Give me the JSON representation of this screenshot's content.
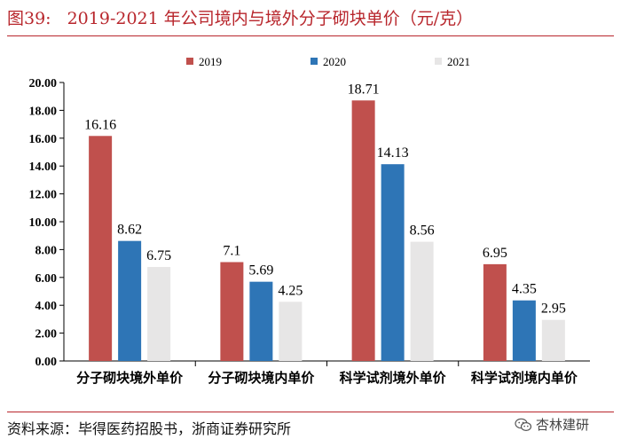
{
  "header": {
    "figure_label": "图39:",
    "title": "2019-2021 年公司境内与境外分子砌块单价（元/克）"
  },
  "footer": {
    "source": "资料来源：毕得医药招股书，浙商证券研究所",
    "watermark": "杏林建研",
    "watermark_icon": "wechat-icon"
  },
  "colors": {
    "accent": "#b8262c",
    "series_2019": "#c0504d",
    "series_2020": "#2e75b6",
    "series_2021": "#e7e6e6"
  },
  "chart_data": {
    "type": "bar",
    "title": "2019-2021 年公司境内与境外分子砌块单价（元/克）",
    "xlabel": "",
    "ylabel": "",
    "ylim": [
      0,
      20
    ],
    "yticks": [
      "0.00",
      "2.00",
      "4.00",
      "6.00",
      "8.00",
      "10.00",
      "12.00",
      "14.00",
      "16.00",
      "18.00",
      "20.00"
    ],
    "grid": false,
    "legend_position": "top-right",
    "categories": [
      "分子砌块境外单价",
      "分子砌块境内单价",
      "科学试剂境外单价",
      "科学试剂境内单价"
    ],
    "series": [
      {
        "name": "2019",
        "color": "#c0504d",
        "values": [
          16.16,
          7.1,
          18.71,
          6.95
        ],
        "labels": [
          "16.16",
          "7.1",
          "18.71",
          "6.95"
        ]
      },
      {
        "name": "2020",
        "color": "#2e75b6",
        "values": [
          8.62,
          5.69,
          14.13,
          4.35
        ],
        "labels": [
          "8.62",
          "5.69",
          "14.13",
          "4.35"
        ]
      },
      {
        "name": "2021",
        "color": "#e7e6e6",
        "values": [
          6.75,
          4.25,
          8.56,
          2.95
        ],
        "labels": [
          "6.75",
          "4.25",
          "8.56",
          "2.95"
        ]
      }
    ]
  }
}
